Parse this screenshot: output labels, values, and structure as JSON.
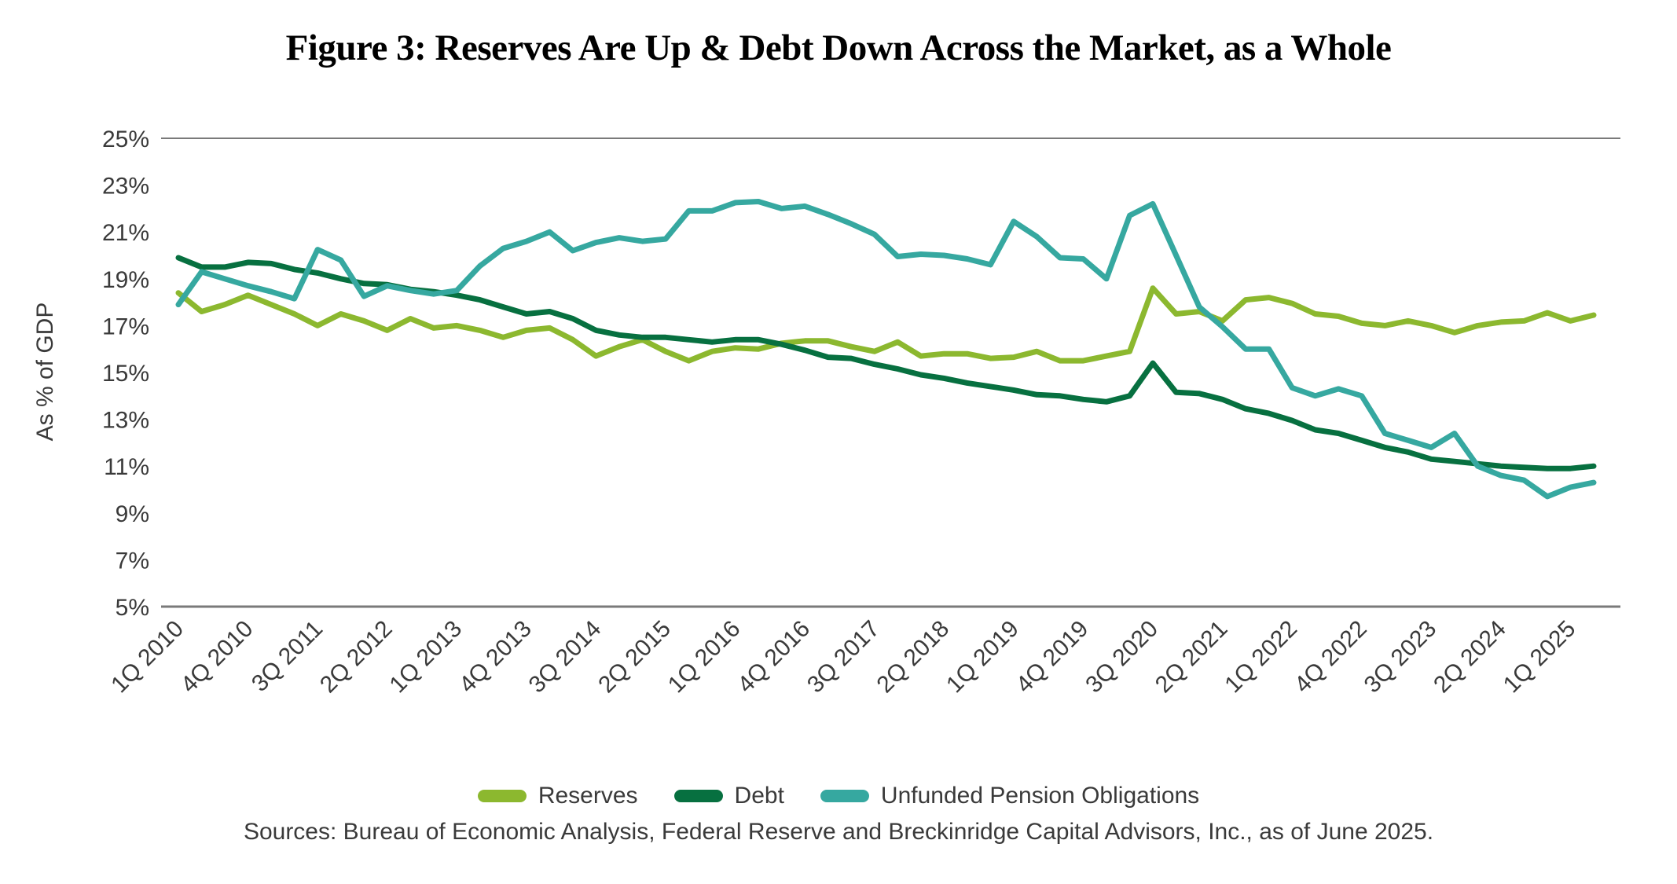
{
  "title": "Figure 3: Reserves Are Up & Debt Down Across the Market, as a Whole",
  "y_axis_title": "As % of GDP",
  "sources": "Sources: Bureau of Economic Analysis, Federal Reserve and Breckinridge Capital Advisors, Inc., as of June 2025.",
  "colors": {
    "axis_text": "#3A3A3A",
    "frame_line": "#7A7A7A",
    "title_text": "#000000",
    "background": "#FFFFFF"
  },
  "chart_data": {
    "type": "line",
    "title": "Figure 3: Reserves Are Up & Debt Down Across the Market, as a Whole",
    "xlabel": "",
    "ylabel": "As % of GDP",
    "ylim": [
      5,
      25
    ],
    "y_ticks": [
      25,
      23,
      21,
      19,
      17,
      15,
      13,
      11,
      9,
      7,
      5
    ],
    "y_tick_suffix": "%",
    "grid": "top and bottom frame lines only, no inner gridlines",
    "legend_position": "bottom-center",
    "x_frequency": "quarterly",
    "x_tick_interval": 3,
    "x_tick_labels": [
      "1Q 2010",
      "4Q 2010",
      "3Q 2011",
      "2Q 2012",
      "1Q 2013",
      "4Q 2013",
      "3Q 2014",
      "2Q 2015",
      "1Q 2016",
      "4Q 2016",
      "3Q 2017",
      "2Q 2018",
      "1Q 2019",
      "4Q 2019",
      "3Q 2020",
      "2Q 2021",
      "1Q 2022",
      "4Q 2022",
      "3Q 2023",
      "2Q 2024",
      "1Q 2025"
    ],
    "series": [
      {
        "name": "Reserves",
        "color": "#8CB82F",
        "values": [
          18.4,
          17.6,
          17.9,
          18.3,
          17.9,
          17.5,
          17.0,
          17.5,
          17.2,
          16.8,
          17.3,
          16.9,
          17.0,
          16.8,
          16.5,
          16.8,
          16.9,
          16.4,
          15.7,
          16.1,
          16.4,
          15.9,
          15.5,
          15.9,
          16.05,
          16.0,
          16.25,
          16.35,
          16.35,
          16.1,
          15.9,
          16.3,
          15.7,
          15.8,
          15.8,
          15.6,
          15.65,
          15.9,
          15.5,
          15.5,
          15.7,
          15.9,
          18.6,
          17.5,
          17.6,
          17.2,
          18.1,
          18.2,
          17.95,
          17.5,
          17.4,
          17.1,
          17.0,
          17.2,
          17.0,
          16.7,
          17.0,
          17.15,
          17.2,
          17.55,
          17.2,
          17.45
        ]
      },
      {
        "name": "Debt",
        "color": "#077040",
        "values": [
          19.9,
          19.5,
          19.5,
          19.7,
          19.65,
          19.4,
          19.25,
          19.0,
          18.8,
          18.75,
          18.55,
          18.45,
          18.3,
          18.1,
          17.8,
          17.5,
          17.6,
          17.3,
          16.8,
          16.6,
          16.5,
          16.5,
          16.4,
          16.3,
          16.4,
          16.4,
          16.2,
          15.95,
          15.65,
          15.6,
          15.35,
          15.15,
          14.9,
          14.75,
          14.55,
          14.4,
          14.25,
          14.05,
          14.0,
          13.85,
          13.75,
          14.0,
          15.4,
          14.15,
          14.1,
          13.85,
          13.45,
          13.25,
          12.95,
          12.55,
          12.4,
          12.1,
          11.8,
          11.6,
          11.3,
          11.2,
          11.1,
          11.0,
          10.95,
          10.9,
          10.9,
          11.0
        ]
      },
      {
        "name": "Unfunded Pension Obligations",
        "color": "#36A8A0",
        "values": [
          17.9,
          19.3,
          19.0,
          18.7,
          18.45,
          18.15,
          20.25,
          19.8,
          18.25,
          18.7,
          18.5,
          18.35,
          18.5,
          19.55,
          20.3,
          20.6,
          21.0,
          20.2,
          20.55,
          20.75,
          20.6,
          20.7,
          21.9,
          21.9,
          22.25,
          22.3,
          22.0,
          22.1,
          21.75,
          21.35,
          20.9,
          19.95,
          20.05,
          20.0,
          19.85,
          19.6,
          21.45,
          20.8,
          19.9,
          19.85,
          19.0,
          21.7,
          22.2,
          20.0,
          17.8,
          16.95,
          16.0,
          16.0,
          14.35,
          14.0,
          14.3,
          14.0,
          12.4,
          12.1,
          11.8,
          12.4,
          11.0,
          10.6,
          10.4,
          9.7,
          10.1,
          10.3
        ]
      }
    ]
  }
}
